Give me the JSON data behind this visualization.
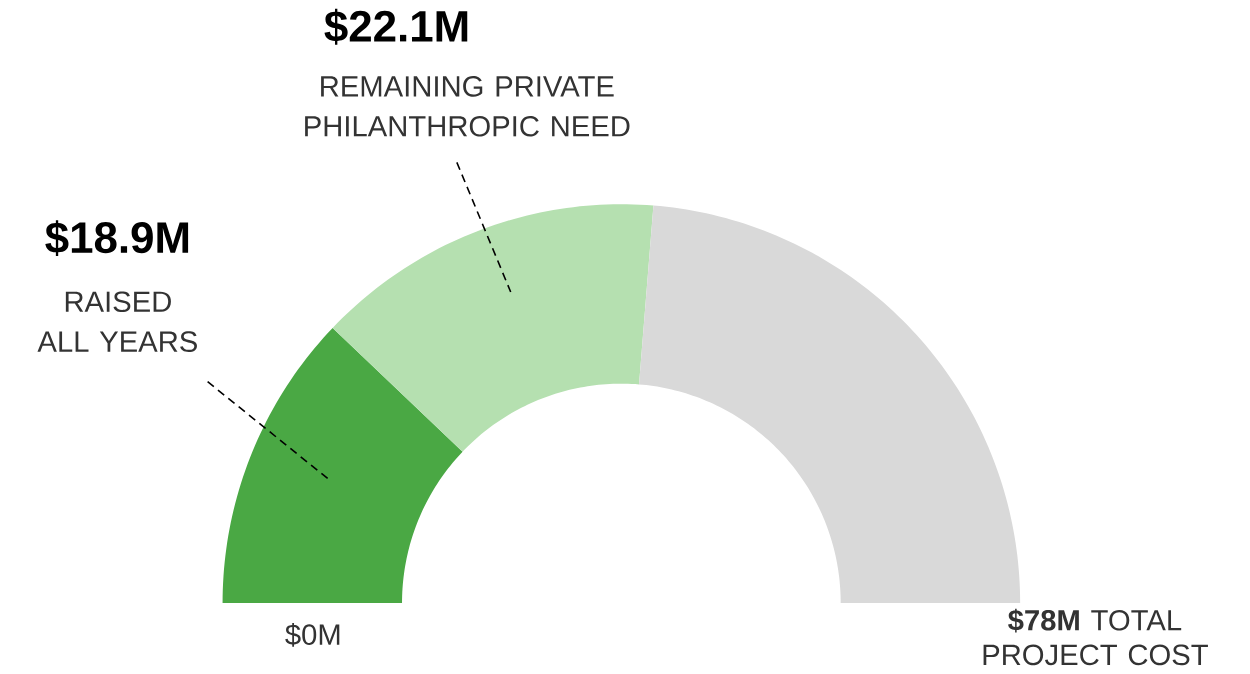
{
  "chart_data": {
    "type": "donut",
    "categories": [
      "RAISED ALL YEARS",
      "REMAINING PRIVATE PHILANTHROPIC NEED",
      null
    ],
    "values": [
      18.9,
      22.1,
      37.0
    ],
    "colors": [
      "#4aa844",
      "#b5e0b0",
      "#d9d9d9"
    ],
    "value_labels": [
      "$18.9M",
      "$22.1M",
      null
    ],
    "annotations": [
      "$0M",
      "**$78M** TOTAL PROJECT COST"
    ]
  }
}
